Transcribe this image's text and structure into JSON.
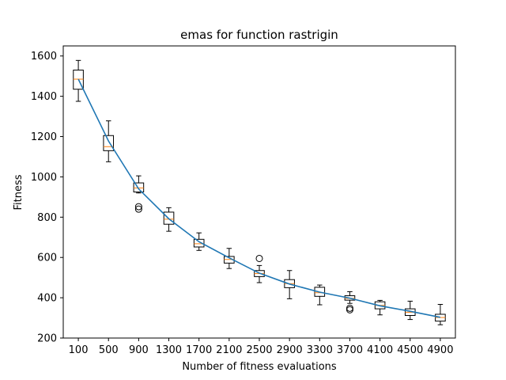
{
  "chart_data": {
    "type": "box",
    "title": "emas for function rastrigin",
    "xlabel": "Number of fitness evaluations",
    "ylabel": "Fitness",
    "ylim": [
      200,
      1650
    ],
    "yticks": [
      200,
      400,
      600,
      800,
      1000,
      1200,
      1400,
      1600
    ],
    "grid": false,
    "categories": [
      "100",
      "500",
      "900",
      "1300",
      "1700",
      "2100",
      "2500",
      "2900",
      "3300",
      "3700",
      "4100",
      "4500",
      "4900"
    ],
    "boxes": [
      {
        "x": "100",
        "whisker_low": 1375,
        "q1": 1435,
        "median": 1485,
        "q3": 1530,
        "whisker_high": 1578,
        "outliers": []
      },
      {
        "x": "500",
        "whisker_low": 1075,
        "q1": 1130,
        "median": 1150,
        "q3": 1205,
        "whisker_high": 1278,
        "outliers": []
      },
      {
        "x": "900",
        "whisker_low": 920,
        "q1": 925,
        "median": 945,
        "q3": 970,
        "whisker_high": 1005,
        "outliers": [
          840,
          852
        ]
      },
      {
        "x": "1300",
        "whisker_low": 730,
        "q1": 765,
        "median": 790,
        "q3": 825,
        "whisker_high": 847,
        "outliers": []
      },
      {
        "x": "1700",
        "whisker_low": 635,
        "q1": 652,
        "median": 668,
        "q3": 690,
        "whisker_high": 722,
        "outliers": []
      },
      {
        "x": "2100",
        "whisker_low": 545,
        "q1": 572,
        "median": 590,
        "q3": 605,
        "whisker_high": 645,
        "outliers": []
      },
      {
        "x": "2500",
        "whisker_low": 475,
        "q1": 505,
        "median": 520,
        "q3": 535,
        "whisker_high": 560,
        "outliers": [
          595
        ]
      },
      {
        "x": "2900",
        "whisker_low": 395,
        "q1": 450,
        "median": 470,
        "q3": 490,
        "whisker_high": 535,
        "outliers": []
      },
      {
        "x": "3300",
        "whisker_low": 365,
        "q1": 407,
        "median": 425,
        "q3": 452,
        "whisker_high": 463,
        "outliers": []
      },
      {
        "x": "3700",
        "whisker_low": 372,
        "q1": 388,
        "median": 397,
        "q3": 410,
        "whisker_high": 430,
        "outliers": [
          340,
          348
        ]
      },
      {
        "x": "4100",
        "whisker_low": 315,
        "q1": 345,
        "median": 362,
        "q3": 380,
        "whisker_high": 387,
        "outliers": []
      },
      {
        "x": "4500",
        "whisker_low": 292,
        "q1": 312,
        "median": 328,
        "q3": 345,
        "whisker_high": 383,
        "outliers": []
      },
      {
        "x": "4900",
        "whisker_low": 266,
        "q1": 284,
        "median": 302,
        "q3": 318,
        "whisker_high": 367,
        "outliers": []
      }
    ],
    "mean_line": {
      "values": [
        1485,
        1178,
        940,
        792,
        678,
        598,
        522,
        468,
        428,
        398,
        360,
        333,
        303
      ]
    },
    "colors": {
      "line": "#1f77b4",
      "median": "#ff7f0e",
      "box": "#000000",
      "background": "#ffffff"
    }
  }
}
